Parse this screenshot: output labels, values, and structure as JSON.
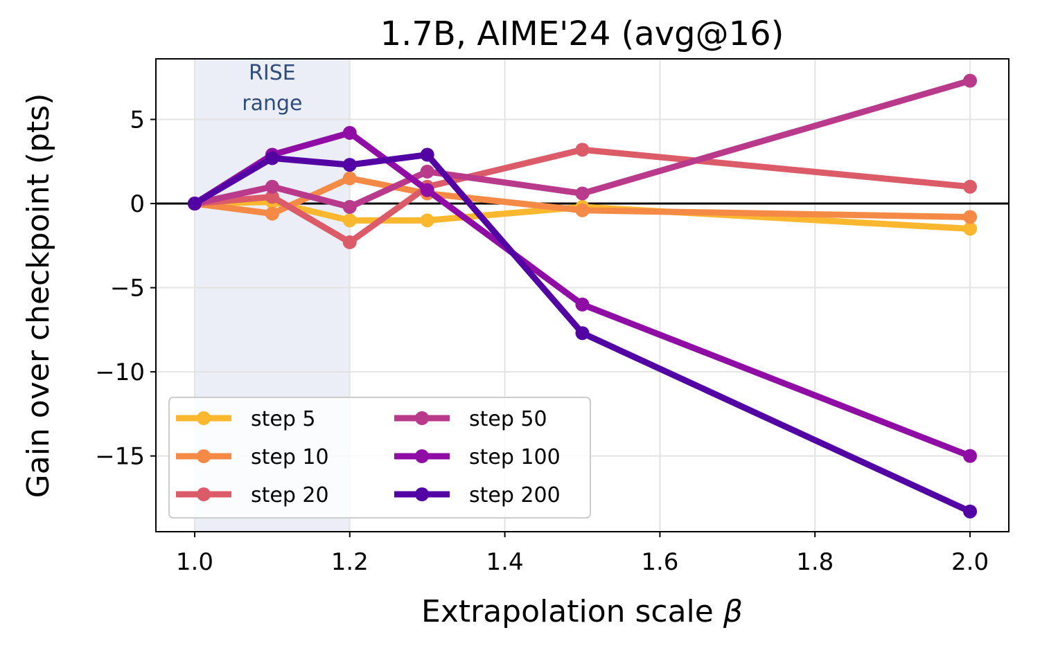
{
  "chart_data": {
    "type": "line",
    "title": "1.7B, AIME'24 (avg@16)",
    "xlabel": "Extrapolation scale",
    "xlabel_symbol": "β",
    "ylabel": "Gain over checkpoint (pts)",
    "xlim": [
      0.95,
      2.05
    ],
    "ylim": [
      -19.5,
      8.6
    ],
    "xticks": [
      1.0,
      1.2,
      1.4,
      1.6,
      1.8,
      2.0
    ],
    "xtick_labels": [
      "1.0",
      "1.2",
      "1.4",
      "1.6",
      "1.8",
      "2.0"
    ],
    "yticks": [
      5,
      0,
      -5,
      -10,
      -15
    ],
    "ytick_labels": [
      "5",
      "0",
      "−5",
      "−10",
      "−15"
    ],
    "grid": true,
    "zero_line": true,
    "legend_position": "lower-left",
    "shaded_region": {
      "x_range": [
        1.0,
        1.2
      ],
      "label_line1": "RISE",
      "label_line2": "range",
      "color": "#dde3f0"
    },
    "x": [
      1.0,
      1.1,
      1.2,
      1.3,
      1.5,
      2.0
    ],
    "series": [
      {
        "name": "step 5",
        "color": "#fbb82f",
        "values": [
          0,
          0.1,
          -1.0,
          -1.0,
          -0.2,
          -1.5
        ]
      },
      {
        "name": "step 10",
        "color": "#f58a46",
        "values": [
          0,
          -0.6,
          1.5,
          0.6,
          -0.4,
          -0.8
        ]
      },
      {
        "name": "step 20",
        "color": "#db5c68",
        "values": [
          0,
          0.4,
          -2.3,
          1.0,
          3.2,
          1.0
        ]
      },
      {
        "name": "step 50",
        "color": "#b93a8b",
        "values": [
          0,
          1.0,
          -0.2,
          1.9,
          0.6,
          7.3
        ]
      },
      {
        "name": "step 100",
        "color": "#8f0da4",
        "values": [
          0,
          2.9,
          4.2,
          0.8,
          -6.0,
          -15.0
        ]
      },
      {
        "name": "step 200",
        "color": "#5302a3",
        "values": [
          0,
          2.7,
          2.3,
          2.9,
          -7.7,
          -18.3
        ]
      }
    ]
  }
}
